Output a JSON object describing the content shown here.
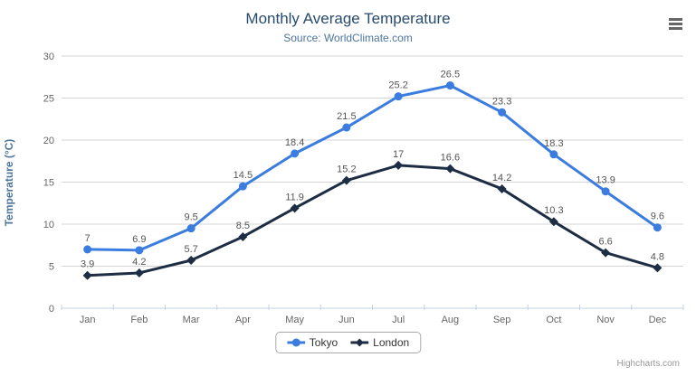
{
  "header": {
    "title": "Monthly Average Temperature",
    "subtitle": "Source: WorldClimate.com",
    "menu_icon": "hamburger-menu-icon"
  },
  "credits": {
    "label": "Highcharts.com"
  },
  "chart_data": {
    "type": "line",
    "title": "Monthly Average Temperature",
    "subtitle": "Source: WorldClimate.com",
    "categories": [
      "Jan",
      "Feb",
      "Mar",
      "Apr",
      "May",
      "Jun",
      "Jul",
      "Aug",
      "Sep",
      "Oct",
      "Nov",
      "Dec"
    ],
    "series": [
      {
        "name": "Tokyo",
        "color": "#3a7ce0",
        "marker": "circle",
        "values": [
          7,
          6.9,
          9.5,
          14.5,
          18.4,
          21.5,
          25.2,
          26.5,
          23.3,
          18.3,
          13.9,
          9.6
        ]
      },
      {
        "name": "London",
        "color": "#1d2d44",
        "marker": "diamond",
        "values": [
          3.9,
          4.2,
          5.7,
          8.5,
          11.9,
          15.2,
          17,
          16.6,
          14.2,
          10.3,
          6.6,
          4.8
        ]
      }
    ],
    "xlabel": "",
    "ylabel": "Temperature (°C)",
    "ylim": [
      0,
      30
    ],
    "yticks": [
      0,
      5,
      10,
      15,
      20,
      25,
      30
    ],
    "grid": true,
    "legend_position": "bottom",
    "colors": {
      "title": "#274b6d",
      "subtitle": "#4d759e",
      "axis_title": "#4d759e",
      "tick_label": "#666666",
      "data_label": "#555555",
      "gridline": "#d4d4d4",
      "axis_line": "#c6d0e2"
    }
  }
}
